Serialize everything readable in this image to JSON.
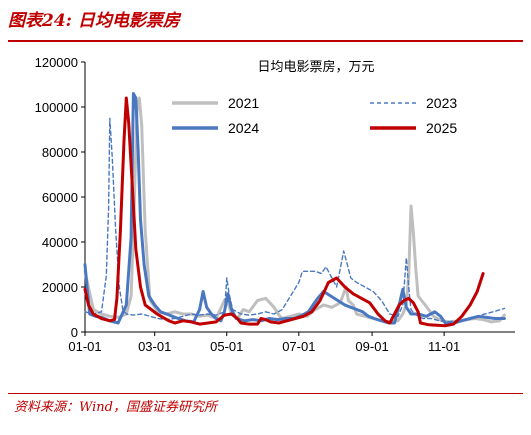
{
  "figure": {
    "title": "图表24:  日均电影票房",
    "source": "资料来源：Wind，国盛证券研究所"
  },
  "colors": {
    "accent": "#c00000",
    "s2021": "#bfbfbf",
    "s2023": "#4a78c0",
    "s2024": "#4a78c0",
    "s2025": "#c00000",
    "axis": "#000000"
  },
  "chart_data": {
    "type": "line",
    "title": "日均电影票房，万元",
    "xlabel": "",
    "ylabel": "",
    "x_tick_labels": [
      "01-01",
      "03-01",
      "05-01",
      "07-01",
      "09-01",
      "11-01"
    ],
    "x_tick_days": [
      1,
      60,
      121,
      182,
      244,
      305
    ],
    "xlim": [
      1,
      365
    ],
    "ylim": [
      0,
      120000
    ],
    "y_ticks": [
      0,
      20000,
      40000,
      60000,
      80000,
      100000,
      120000
    ],
    "grid": false,
    "legend_position": "top-right",
    "series": [
      {
        "name": "2021",
        "color_key": "s2021",
        "dash": "solid",
        "points": [
          [
            1,
            27000
          ],
          [
            8,
            10000
          ],
          [
            15,
            8000
          ],
          [
            22,
            7000
          ],
          [
            29,
            6500
          ],
          [
            36,
            8000
          ],
          [
            40,
            16000
          ],
          [
            42,
            45000
          ],
          [
            44,
            80000
          ],
          [
            45,
            98000
          ],
          [
            47,
            104000
          ],
          [
            49,
            92000
          ],
          [
            52,
            45000
          ],
          [
            56,
            14000
          ],
          [
            63,
            9000
          ],
          [
            70,
            8000
          ],
          [
            77,
            9000
          ],
          [
            84,
            8000
          ],
          [
            91,
            8000
          ],
          [
            98,
            7000
          ],
          [
            105,
            7500
          ],
          [
            112,
            6000
          ],
          [
            119,
            14000
          ],
          [
            121,
            15000
          ],
          [
            125,
            8000
          ],
          [
            130,
            6000
          ],
          [
            135,
            10000
          ],
          [
            140,
            9000
          ],
          [
            147,
            14000
          ],
          [
            154,
            15000
          ],
          [
            161,
            11000
          ],
          [
            166,
            7000
          ],
          [
            168,
            6000
          ],
          [
            175,
            7000
          ],
          [
            182,
            8000
          ],
          [
            189,
            7000
          ],
          [
            196,
            10000
          ],
          [
            203,
            12000
          ],
          [
            210,
            11000
          ],
          [
            217,
            13000
          ],
          [
            222,
            20000
          ],
          [
            224,
            14000
          ],
          [
            228,
            12000
          ],
          [
            231,
            8000
          ],
          [
            238,
            7000
          ],
          [
            245,
            6000
          ],
          [
            252,
            5000
          ],
          [
            259,
            4500
          ],
          [
            266,
            5000
          ],
          [
            270,
            8000
          ],
          [
            273,
            12000
          ],
          [
            275,
            25000
          ],
          [
            277,
            56000
          ],
          [
            279,
            44000
          ],
          [
            281,
            28000
          ],
          [
            283,
            16000
          ],
          [
            289,
            12000
          ],
          [
            296,
            7000
          ],
          [
            303,
            5000
          ],
          [
            310,
            4500
          ],
          [
            317,
            5000
          ],
          [
            324,
            5500
          ],
          [
            331,
            6000
          ],
          [
            338,
            5500
          ],
          [
            345,
            4500
          ],
          [
            352,
            5000
          ],
          [
            356,
            7500
          ]
        ]
      },
      {
        "name": "2023",
        "color_key": "s2023",
        "dash": "dashed",
        "points": [
          [
            1,
            9000
          ],
          [
            8,
            8000
          ],
          [
            15,
            9000
          ],
          [
            19,
            25000
          ],
          [
            21,
            55000
          ],
          [
            22,
            95000
          ],
          [
            24,
            78000
          ],
          [
            27,
            45000
          ],
          [
            30,
            20000
          ],
          [
            33,
            10000
          ],
          [
            36,
            8000
          ],
          [
            42,
            7500
          ],
          [
            49,
            8000
          ],
          [
            56,
            7000
          ],
          [
            63,
            6000
          ],
          [
            70,
            5500
          ],
          [
            77,
            6000
          ],
          [
            84,
            7000
          ],
          [
            91,
            8000
          ],
          [
            98,
            7500
          ],
          [
            105,
            8000
          ],
          [
            112,
            7500
          ],
          [
            119,
            9000
          ],
          [
            121,
            24000
          ],
          [
            123,
            17000
          ],
          [
            126,
            10000
          ],
          [
            133,
            8000
          ],
          [
            140,
            7500
          ],
          [
            147,
            8000
          ],
          [
            154,
            9000
          ],
          [
            161,
            8000
          ],
          [
            168,
            10000
          ],
          [
            175,
            16000
          ],
          [
            182,
            22000
          ],
          [
            185,
            27000
          ],
          [
            189,
            27000
          ],
          [
            196,
            27000
          ],
          [
            201,
            26000
          ],
          [
            205,
            29000
          ],
          [
            210,
            24000
          ],
          [
            214,
            20000
          ],
          [
            217,
            28000
          ],
          [
            220,
            36000
          ],
          [
            223,
            30000
          ],
          [
            226,
            24000
          ],
          [
            231,
            22000
          ],
          [
            238,
            20000
          ],
          [
            245,
            18000
          ],
          [
            252,
            14000
          ],
          [
            259,
            8000
          ],
          [
            266,
            7000
          ],
          [
            270,
            12000
          ],
          [
            273,
            33000
          ],
          [
            275,
            20000
          ],
          [
            277,
            10000
          ],
          [
            280,
            8000
          ],
          [
            287,
            6000
          ],
          [
            294,
            6000
          ],
          [
            301,
            5000
          ],
          [
            308,
            4500
          ],
          [
            315,
            5000
          ],
          [
            322,
            5500
          ],
          [
            329,
            6000
          ],
          [
            336,
            7500
          ],
          [
            343,
            8500
          ],
          [
            350,
            9500
          ],
          [
            356,
            10500
          ]
        ]
      },
      {
        "name": "2024",
        "color_key": "s2024",
        "dash": "solid",
        "points": [
          [
            1,
            30000
          ],
          [
            3,
            18000
          ],
          [
            5,
            8000
          ],
          [
            10,
            7000
          ],
          [
            15,
            6500
          ],
          [
            22,
            5000
          ],
          [
            29,
            4000
          ],
          [
            36,
            12000
          ],
          [
            40,
            42000
          ],
          [
            42,
            106000
          ],
          [
            44,
            104000
          ],
          [
            46,
            80000
          ],
          [
            48,
            50000
          ],
          [
            51,
            30000
          ],
          [
            55,
            16000
          ],
          [
            60,
            12000
          ],
          [
            65,
            9000
          ],
          [
            70,
            8000
          ],
          [
            75,
            7000
          ],
          [
            80,
            6000
          ],
          [
            86,
            5000
          ],
          [
            93,
            4500
          ],
          [
            98,
            10000
          ],
          [
            101,
            18000
          ],
          [
            104,
            11000
          ],
          [
            108,
            8000
          ],
          [
            112,
            6000
          ],
          [
            116,
            5000
          ],
          [
            119,
            9000
          ],
          [
            122,
            17000
          ],
          [
            125,
            10000
          ],
          [
            129,
            6000
          ],
          [
            136,
            5000
          ],
          [
            143,
            5500
          ],
          [
            150,
            5000
          ],
          [
            157,
            6000
          ],
          [
            164,
            5500
          ],
          [
            171,
            6000
          ],
          [
            178,
            6000
          ],
          [
            185,
            7500
          ],
          [
            190,
            9000
          ],
          [
            194,
            12000
          ],
          [
            198,
            15000
          ],
          [
            203,
            18000
          ],
          [
            209,
            16000
          ],
          [
            215,
            14000
          ],
          [
            221,
            12000
          ],
          [
            226,
            11000
          ],
          [
            231,
            10000
          ],
          [
            236,
            9000
          ],
          [
            241,
            7000
          ],
          [
            246,
            6000
          ],
          [
            252,
            5000
          ],
          [
            258,
            4000
          ],
          [
            263,
            4000
          ],
          [
            267,
            12000
          ],
          [
            270,
            19000
          ],
          [
            273,
            11000
          ],
          [
            277,
            8000
          ],
          [
            283,
            8000
          ],
          [
            290,
            7000
          ],
          [
            297,
            9000
          ],
          [
            302,
            7000
          ],
          [
            306,
            4000
          ],
          [
            313,
            4000
          ],
          [
            320,
            5000
          ],
          [
            327,
            6000
          ],
          [
            334,
            7000
          ],
          [
            341,
            6500
          ],
          [
            348,
            6000
          ],
          [
            356,
            6000
          ]
        ]
      },
      {
        "name": "2025",
        "color_key": "s2025",
        "dash": "solid",
        "points": [
          [
            1,
            19000
          ],
          [
            4,
            12000
          ],
          [
            8,
            8000
          ],
          [
            15,
            6000
          ],
          [
            22,
            5000
          ],
          [
            26,
            5500
          ],
          [
            28,
            15000
          ],
          [
            31,
            45000
          ],
          [
            34,
            85000
          ],
          [
            36,
            104000
          ],
          [
            38,
            93000
          ],
          [
            41,
            65000
          ],
          [
            44,
            37000
          ],
          [
            48,
            20000
          ],
          [
            52,
            12000
          ],
          [
            57,
            10000
          ],
          [
            62,
            8000
          ],
          [
            67,
            6500
          ],
          [
            72,
            5000
          ],
          [
            77,
            4000
          ],
          [
            84,
            5000
          ],
          [
            91,
            4500
          ],
          [
            98,
            3500
          ],
          [
            105,
            4000
          ],
          [
            112,
            4500
          ],
          [
            119,
            7500
          ],
          [
            125,
            8000
          ],
          [
            130,
            6000
          ],
          [
            133,
            4000
          ],
          [
            140,
            3500
          ],
          [
            147,
            3500
          ],
          [
            150,
            6000
          ],
          [
            154,
            5500
          ],
          [
            158,
            4500
          ],
          [
            165,
            4000
          ],
          [
            172,
            5000
          ],
          [
            179,
            6000
          ],
          [
            186,
            7000
          ],
          [
            193,
            9000
          ],
          [
            200,
            14000
          ],
          [
            207,
            22000
          ],
          [
            214,
            24000
          ],
          [
            221,
            20000
          ],
          [
            228,
            17000
          ],
          [
            235,
            15000
          ],
          [
            242,
            13000
          ],
          [
            249,
            8000
          ],
          [
            255,
            5000
          ],
          [
            259,
            4000
          ],
          [
            263,
            8000
          ],
          [
            267,
            12000
          ],
          [
            271,
            14000
          ],
          [
            275,
            15000
          ],
          [
            279,
            13000
          ],
          [
            283,
            9000
          ],
          [
            285,
            4000
          ],
          [
            292,
            3200
          ],
          [
            299,
            3000
          ],
          [
            306,
            2800
          ],
          [
            313,
            3500
          ],
          [
            320,
            7000
          ],
          [
            327,
            12000
          ],
          [
            333,
            18000
          ],
          [
            338,
            26000
          ]
        ]
      }
    ]
  }
}
